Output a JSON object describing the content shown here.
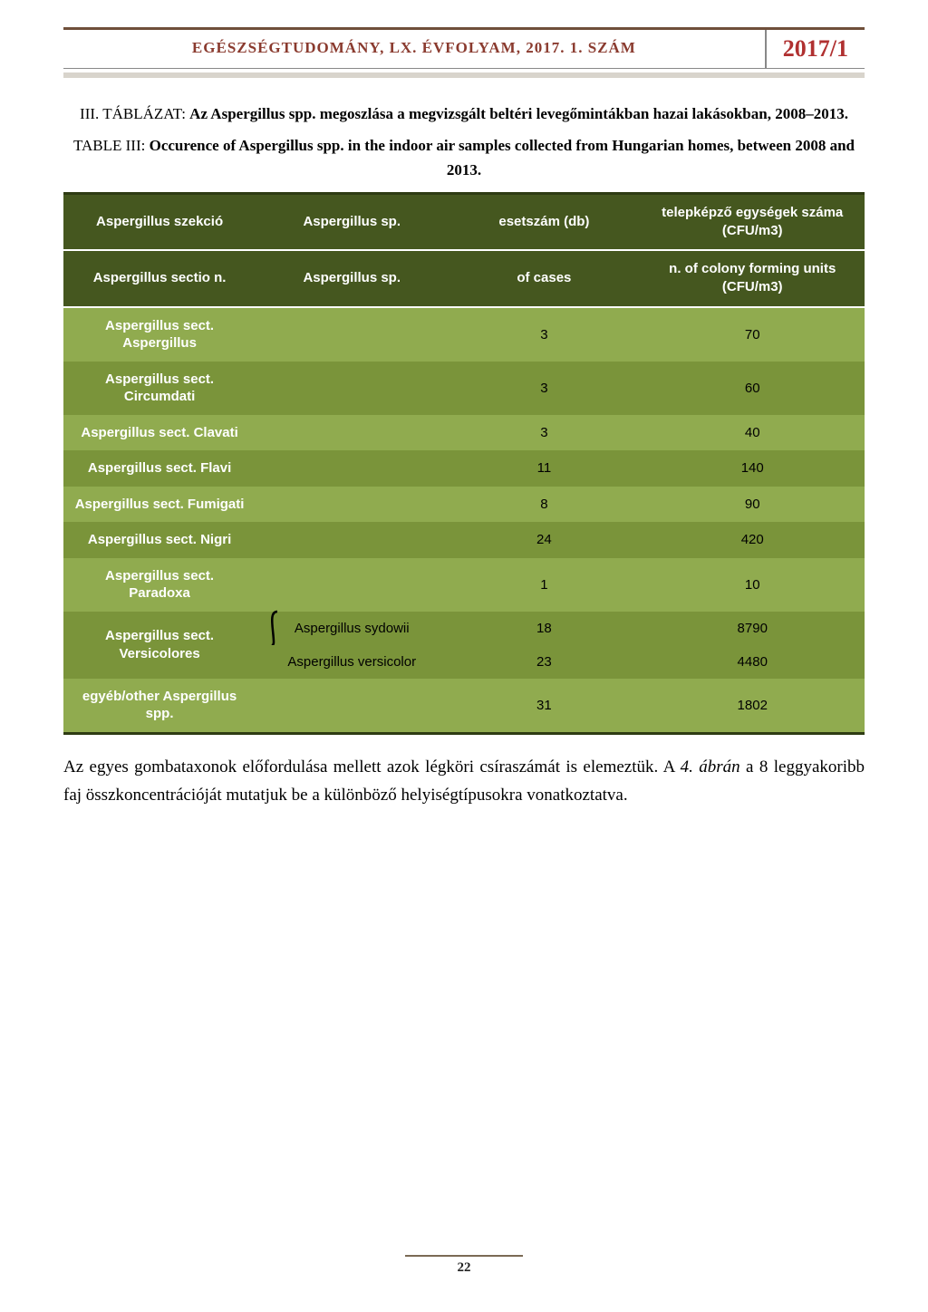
{
  "header": {
    "title": "EGÉSZSÉGTUDOMÁNY, LX. ÉVFOLYAM, 2017. 1. SZÁM",
    "badge": "2017/1"
  },
  "caption_hu": {
    "label": "III. TÁBLÁZAT: ",
    "bold": "Az Aspergillus spp. megoszlása a megvizsgált beltéri levegőmintákban hazai lakásokban, 2008–2013."
  },
  "caption_en": {
    "label": "TABLE III: ",
    "bold": "Occurence of Aspergillus spp. in the indoor air samples collected from Hungarian homes, between 2008 and 2013."
  },
  "table": {
    "header_hu": {
      "c1": "Aspergillus szekció",
      "c2": "Aspergillus sp.",
      "c3": "esetszám (db)",
      "c4": "telepképző egységek száma (CFU/m3)"
    },
    "header_en": {
      "c1": "Aspergillus sectio n.",
      "c2": "Aspergillus sp.",
      "c3": "of cases",
      "c4": "n. of colony forming units (CFU/m3)"
    },
    "rows": [
      {
        "section": "Aspergillus sect. Aspergillus",
        "sp": "",
        "cases": "3",
        "cfu": "70",
        "shade": "light"
      },
      {
        "section": "Aspergillus sect. Circumdati",
        "sp": "",
        "cases": "3",
        "cfu": "60",
        "shade": "dark"
      },
      {
        "section": "Aspergillus sect. Clavati",
        "sp": "",
        "cases": "3",
        "cfu": "40",
        "shade": "light"
      },
      {
        "section": "Aspergillus sect. Flavi",
        "sp": "",
        "cases": "11",
        "cfu": "140",
        "shade": "dark"
      },
      {
        "section": "Aspergillus sect. Fumigati",
        "sp": "",
        "cases": "8",
        "cfu": "90",
        "shade": "light"
      },
      {
        "section": "Aspergillus sect. Nigri",
        "sp": "",
        "cases": "24",
        "cfu": "420",
        "shade": "dark"
      },
      {
        "section": "Aspergillus sect. Paradoxa",
        "sp": "",
        "cases": "1",
        "cfu": "10",
        "shade": "light"
      }
    ],
    "versicolores": {
      "section": "Aspergillus sect. Versicolores",
      "sp1": "Aspergillus sydowii",
      "cases1": "18",
      "cfu1": "8790",
      "sp2": "Aspergillus versicolor",
      "cases2": "23",
      "cfu2": "4480"
    },
    "other": {
      "section": "egyéb/other Aspergillus spp.",
      "cases": "31",
      "cfu": "1802"
    },
    "colors": {
      "header_bg": "#45571f",
      "row_dark": "#7a943a",
      "row_light": "#90ab4f",
      "border": "#2e3b13",
      "text_white": "#ffffff",
      "text_black": "#000000"
    }
  },
  "body_text": {
    "t1": "Az egyes gombataxonok előfordulása mellett azok légköri csíraszámát is elemeztük. A ",
    "ital": "4. ábrán",
    "t2": " a 8 leggyakoribb faj összkoncentrációját mutatjuk be a különböző helyiségtípusokra vonatkoztatva."
  },
  "page_number": "22"
}
